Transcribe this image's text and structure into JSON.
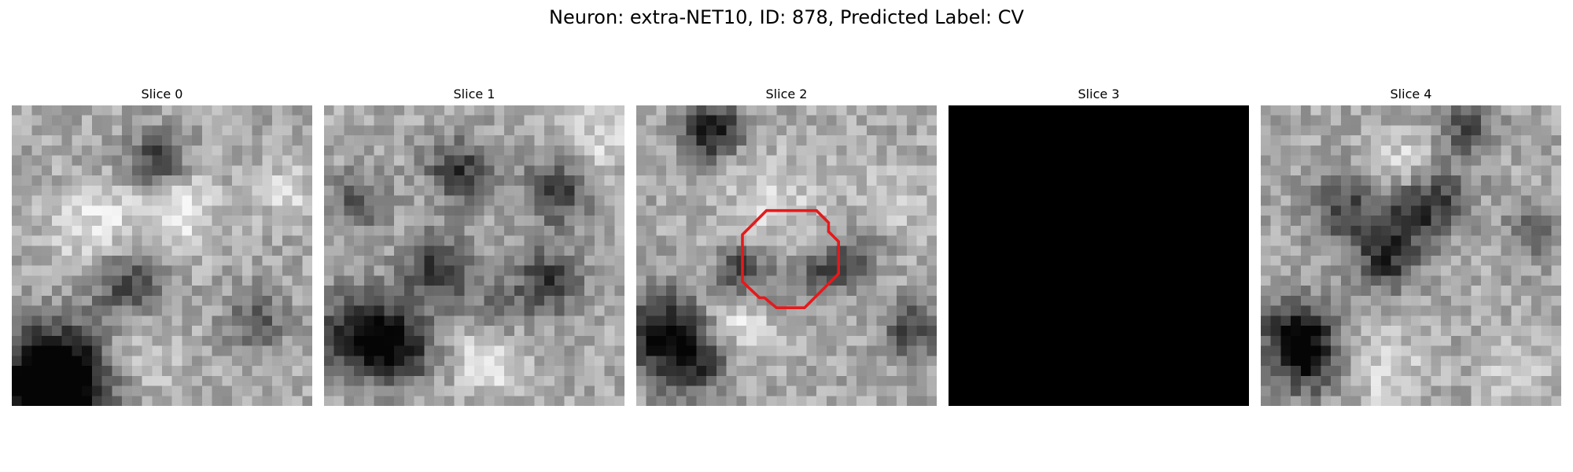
{
  "figure": {
    "title": "Neuron: extra-NET10, ID: 878, Predicted Label: CV"
  },
  "panels": [
    {
      "title": "Slice 0",
      "kind": "microscopy-grayscale",
      "seed": 11,
      "blobs": [
        [
          3,
          29,
          4.5,
          -0.7
        ],
        [
          4.5,
          26,
          3,
          -0.5
        ],
        [
          14,
          5,
          2,
          -0.45
        ],
        [
          11,
          17,
          2.5,
          -0.4
        ],
        [
          24,
          21,
          2.2,
          -0.3
        ],
        [
          27,
          8,
          2,
          0.2
        ],
        [
          16,
          10,
          2.5,
          0.3
        ],
        [
          12,
          25,
          3,
          0.15
        ],
        [
          8,
          12,
          3,
          0.25
        ]
      ]
    },
    {
      "title": "Slice 1",
      "kind": "microscopy-grayscale",
      "seed": 23,
      "blobs": [
        [
          3,
          22,
          3,
          -0.55
        ],
        [
          7,
          24,
          2.5,
          -0.5
        ],
        [
          13,
          6,
          2.2,
          -0.45
        ],
        [
          23,
          8,
          2.5,
          -0.4
        ],
        [
          11,
          16,
          2.5,
          -0.45
        ],
        [
          22,
          17,
          2.3,
          -0.45
        ],
        [
          3,
          9,
          2,
          -0.3
        ],
        [
          17,
          20,
          2,
          -0.2
        ],
        [
          16,
          25,
          2.5,
          0.25
        ],
        [
          27,
          3,
          2.5,
          0.2
        ]
      ]
    },
    {
      "title": "Slice 2",
      "kind": "microscopy-grayscale",
      "seed": 37,
      "blobs": [
        [
          7,
          2,
          2,
          -0.6
        ],
        [
          2,
          22,
          3,
          -0.5
        ],
        [
          5,
          25,
          2.5,
          -0.45
        ],
        [
          10,
          16,
          1.8,
          -0.4
        ],
        [
          19,
          16,
          1.8,
          -0.35
        ],
        [
          27,
          22,
          2,
          -0.4
        ],
        [
          22,
          14,
          1.6,
          -0.25
        ],
        [
          14,
          18,
          2.5,
          -0.15
        ],
        [
          13,
          9,
          3,
          0.2
        ],
        [
          10,
          21,
          2.5,
          0.25
        ],
        [
          25,
          9,
          2.5,
          0.15
        ]
      ]
    },
    {
      "title": "Slice 3",
      "kind": "blank-black",
      "seed": 0,
      "blobs": []
    },
    {
      "title": "Slice 4",
      "kind": "microscopy-grayscale",
      "seed": 51,
      "blobs": [
        [
          3,
          22,
          2.5,
          -0.5
        ],
        [
          4,
          25,
          2.5,
          -0.45
        ],
        [
          8,
          10,
          2.5,
          -0.4
        ],
        [
          17,
          9,
          2.3,
          -0.4
        ],
        [
          12,
          15,
          2.2,
          -0.45
        ],
        [
          14,
          11,
          2,
          -0.3
        ],
        [
          20,
          2,
          2,
          -0.35
        ],
        [
          27,
          12,
          2,
          -0.3
        ],
        [
          12,
          26,
          2.5,
          0.2
        ],
        [
          25,
          26,
          2.5,
          0.15
        ],
        [
          14,
          5,
          2,
          0.2
        ]
      ]
    }
  ],
  "roi": {
    "panel_index": 2,
    "color": "#e41a1c",
    "grid_size": 30,
    "polygon": [
      [
        13,
        10.5
      ],
      [
        18,
        10.5
      ],
      [
        19.2,
        11.7
      ],
      [
        19.2,
        12.6
      ],
      [
        20.2,
        13.6
      ],
      [
        20.2,
        16.8
      ],
      [
        16.8,
        20.2
      ],
      [
        14,
        20.2
      ],
      [
        12.8,
        19.2
      ],
      [
        12.3,
        19.2
      ],
      [
        10.6,
        17.6
      ],
      [
        10.6,
        12.9
      ]
    ]
  }
}
